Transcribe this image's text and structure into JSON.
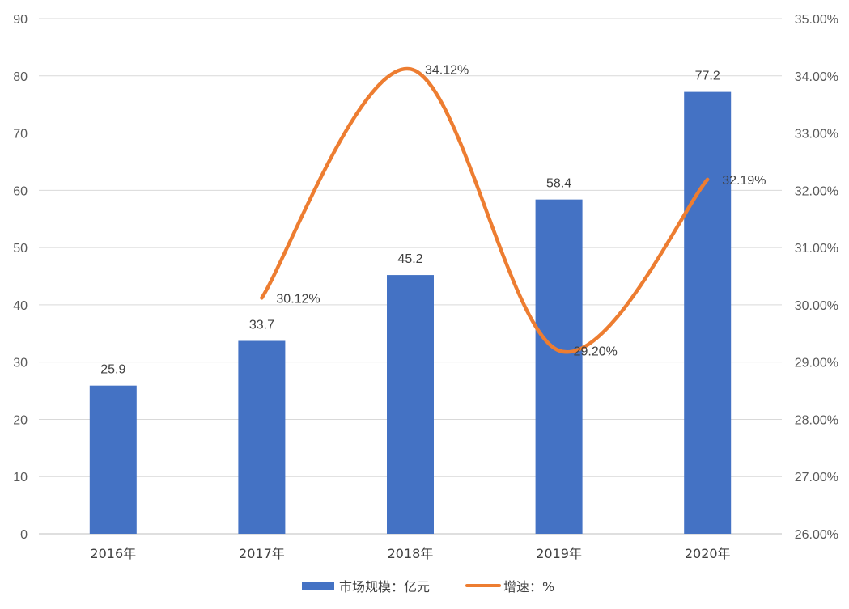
{
  "chart_data": {
    "type": "bar",
    "categories": [
      "2016年",
      "2017年",
      "2018年",
      "2019年",
      "2020年"
    ],
    "series": [
      {
        "name": "市场规模：亿元",
        "type": "bar",
        "axis": "left",
        "color": "#4472c4",
        "values": [
          25.9,
          33.7,
          45.2,
          58.4,
          77.2
        ],
        "labels": [
          "25.9",
          "33.7",
          "45.2",
          "58.4",
          "77.2"
        ]
      },
      {
        "name": "增速：%",
        "type": "line",
        "axis": "right",
        "color": "#ed7d31",
        "values": [
          null,
          30.12,
          34.12,
          29.2,
          32.19
        ],
        "labels": [
          "",
          "30.12%",
          "34.12%",
          "29.20%",
          "32.19%"
        ]
      }
    ],
    "y_left": {
      "range": [
        0,
        90
      ],
      "ticks": [
        0,
        10,
        20,
        30,
        40,
        50,
        60,
        70,
        80,
        90
      ],
      "tick_labels": [
        "0",
        "10",
        "20",
        "30",
        "40",
        "50",
        "60",
        "70",
        "80",
        "90"
      ]
    },
    "y_right": {
      "range": [
        26,
        35
      ],
      "ticks": [
        26,
        27,
        28,
        29,
        30,
        31,
        32,
        33,
        34,
        35
      ],
      "tick_labels": [
        "26.00%",
        "27.00%",
        "28.00%",
        "29.00%",
        "30.00%",
        "31.00%",
        "32.00%",
        "33.00%",
        "34.00%",
        "35.00%"
      ]
    },
    "grid": true,
    "legend_position": "bottom",
    "gridline_color": "#d9d9d9",
    "axis_line_color": "#bfbfbf"
  }
}
